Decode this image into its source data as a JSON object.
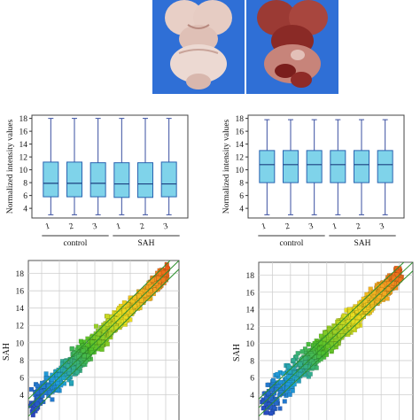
{
  "photos": [
    {
      "name": "control-brain-photo"
    },
    {
      "name": "sah-brain-photo"
    }
  ],
  "box_panels": [
    {
      "ylabel": "Normalized intensity values",
      "yticks": [
        "4",
        "6",
        "8",
        "10",
        "12",
        "14",
        "16",
        "18"
      ],
      "xticks": [
        "1",
        "2",
        "3",
        "1",
        "2",
        "3"
      ],
      "groups": [
        "control",
        "SAH"
      ]
    },
    {
      "ylabel": "Normalized intensity values",
      "yticks": [
        "4",
        "6",
        "8",
        "10",
        "12",
        "14",
        "16",
        "18"
      ],
      "xticks": [
        "1",
        "2",
        "3",
        "1",
        "2",
        "3"
      ],
      "groups": [
        "control",
        "SAH"
      ]
    }
  ],
  "scatter_panels": [
    {
      "ylabel": "SAH",
      "yticks": [
        "4",
        "6",
        "8",
        "10",
        "12",
        "14",
        "16",
        "18"
      ]
    },
    {
      "ylabel": "SAH",
      "yticks": [
        "4",
        "6",
        "8",
        "10",
        "12",
        "14",
        "16",
        "18"
      ]
    }
  ],
  "chart_data": [
    {
      "type": "box",
      "ylabel": "Normalized intensity values",
      "ylim": [
        2.5,
        18.5
      ],
      "categories": [
        "1",
        "2",
        "3",
        "1",
        "2",
        "3"
      ],
      "groups": [
        {
          "name": "control",
          "members": [
            0,
            1,
            2
          ]
        },
        {
          "name": "SAH",
          "members": [
            3,
            4,
            5
          ]
        }
      ],
      "boxes": [
        {
          "min": 3.0,
          "q1": 5.8,
          "median": 7.9,
          "q3": 11.2,
          "max": 18.0
        },
        {
          "min": 3.0,
          "q1": 5.8,
          "median": 7.9,
          "q3": 11.2,
          "max": 18.0
        },
        {
          "min": 3.0,
          "q1": 5.8,
          "median": 7.9,
          "q3": 11.1,
          "max": 18.0
        },
        {
          "min": 3.0,
          "q1": 5.7,
          "median": 7.8,
          "q3": 11.1,
          "max": 18.0
        },
        {
          "min": 3.0,
          "q1": 5.7,
          "median": 7.8,
          "q3": 11.1,
          "max": 18.0
        },
        {
          "min": 3.0,
          "q1": 5.8,
          "median": 7.8,
          "q3": 11.2,
          "max": 18.0
        }
      ]
    },
    {
      "type": "box",
      "ylabel": "Normalized intensity values",
      "ylim": [
        2.5,
        18.5
      ],
      "categories": [
        "1",
        "2",
        "3",
        "1",
        "2",
        "3"
      ],
      "groups": [
        {
          "name": "control",
          "members": [
            0,
            1,
            2
          ]
        },
        {
          "name": "SAH",
          "members": [
            3,
            4,
            5
          ]
        }
      ],
      "boxes": [
        {
          "min": 3.0,
          "q1": 8.0,
          "median": 10.8,
          "q3": 13.0,
          "max": 17.8
        },
        {
          "min": 3.0,
          "q1": 8.0,
          "median": 10.8,
          "q3": 13.0,
          "max": 17.8
        },
        {
          "min": 3.0,
          "q1": 8.0,
          "median": 10.8,
          "q3": 13.0,
          "max": 17.8
        },
        {
          "min": 3.0,
          "q1": 8.0,
          "median": 10.8,
          "q3": 13.0,
          "max": 17.8
        },
        {
          "min": 3.0,
          "q1": 8.0,
          "median": 10.8,
          "q3": 13.0,
          "max": 17.8
        },
        {
          "min": 3.0,
          "q1": 8.0,
          "median": 10.8,
          "q3": 13.0,
          "max": 17.8
        }
      ]
    },
    {
      "type": "scatter",
      "ylabel": "SAH",
      "ylim": [
        2.5,
        19.5
      ],
      "xlim": [
        2.5,
        19.5
      ],
      "color_scale": [
        "#2a3fbf",
        "#1fa0d8",
        "#4fc02a",
        "#e8e020",
        "#f5a020",
        "#e02010"
      ],
      "reference_lines": [
        {
          "name": "y=x",
          "offset": 0,
          "color": "#2d8f2d"
        },
        {
          "name": "upper",
          "offset": 1,
          "color": "#2d8f2d"
        },
        {
          "name": "lower",
          "offset": -1,
          "color": "#2d8f2d"
        }
      ],
      "trend": {
        "x_range": [
          3,
          18
        ],
        "spread": 0.8
      }
    },
    {
      "type": "scatter",
      "ylabel": "SAH",
      "ylim": [
        2.5,
        19.5
      ],
      "xlim": [
        2.5,
        19.5
      ],
      "color_scale": [
        "#2a3fbf",
        "#1fa0d8",
        "#4fc02a",
        "#e8e020",
        "#f5a020",
        "#e02010"
      ],
      "reference_lines": [
        {
          "name": "y=x",
          "offset": 0,
          "color": "#2d8f2d"
        },
        {
          "name": "upper",
          "offset": 1,
          "color": "#2d8f2d"
        },
        {
          "name": "lower",
          "offset": -1,
          "color": "#2d8f2d"
        }
      ],
      "trend": {
        "x_range": [
          3,
          18
        ],
        "spread": 0.9
      }
    }
  ],
  "colors": {
    "box_fill": "#7fd3ea",
    "box_stroke": "#2a63b0",
    "whisker": "#3a4fa0",
    "photo_bg": "#2f6fd6"
  }
}
